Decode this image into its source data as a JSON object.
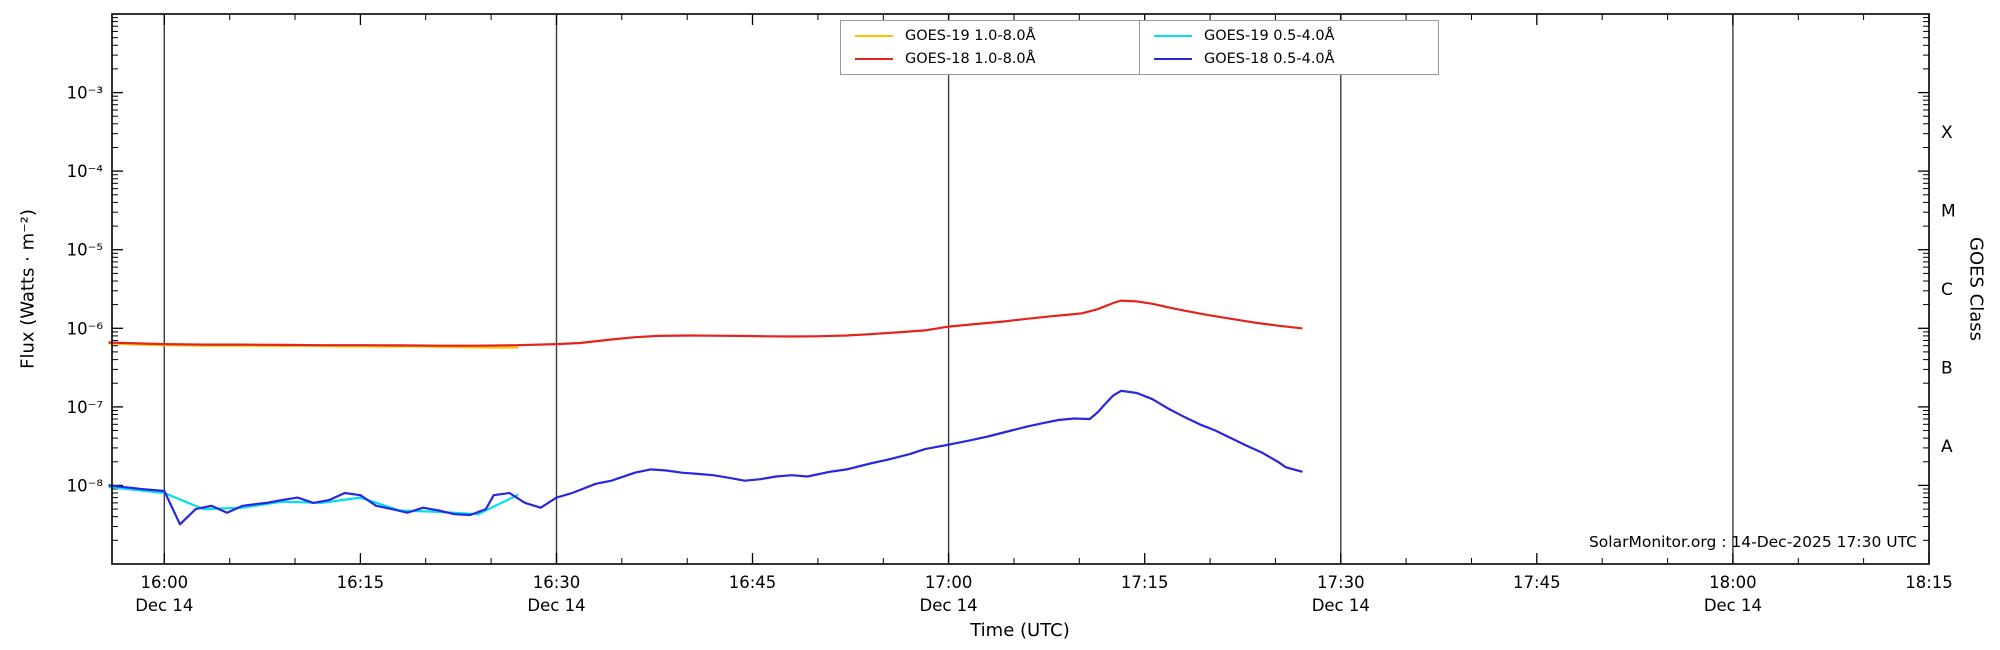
{
  "page": {
    "background": "#ffffff"
  },
  "footer": {
    "credit": "SolarMonitor.org : 14-Dec-2025 17:30 UTC"
  },
  "chart_data": {
    "type": "line",
    "title": "",
    "xlabel": "Time (UTC)",
    "ylabel": "Flux (Watts · m⁻²)",
    "ylabel_right": "GOES Class",
    "x_unit": "decimal_hours_utc",
    "xlim": [
      15.9333,
      18.25
    ],
    "ylim_log10": [
      -9,
      -2
    ],
    "grid": "vertical-only",
    "legend_position": "top-center",
    "gridlines_x": [
      16.0,
      16.5,
      17.0,
      17.5,
      18.0
    ],
    "x_minor_step_minutes": 5,
    "x_ticks": [
      {
        "t": 16.0,
        "label": "16:00",
        "date": "Dec 14"
      },
      {
        "t": 16.25,
        "label": "16:15"
      },
      {
        "t": 16.5,
        "label": "16:30",
        "date": "Dec 14"
      },
      {
        "t": 16.75,
        "label": "16:45"
      },
      {
        "t": 17.0,
        "label": "17:00",
        "date": "Dec 14"
      },
      {
        "t": 17.25,
        "label": "17:15"
      },
      {
        "t": 17.5,
        "label": "17:30",
        "date": "Dec 14"
      },
      {
        "t": 17.75,
        "label": "17:45"
      },
      {
        "t": 18.0,
        "label": "18:00",
        "date": "Dec 14"
      },
      {
        "t": 18.25,
        "label": "18:15"
      }
    ],
    "y_ticks": [
      {
        "exp": -3,
        "label": "10⁻³"
      },
      {
        "exp": -4,
        "label": "10⁻⁴"
      },
      {
        "exp": -5,
        "label": "10⁻⁵"
      },
      {
        "exp": -6,
        "label": "10⁻⁶"
      },
      {
        "exp": -7,
        "label": "10⁻⁷"
      },
      {
        "exp": -8,
        "label": "10⁻⁸"
      }
    ],
    "goes_classes": [
      {
        "label": "X",
        "log10_center": -3.5
      },
      {
        "label": "M",
        "log10_center": -4.5
      },
      {
        "label": "C",
        "log10_center": -5.5
      },
      {
        "label": "B",
        "log10_center": -6.5
      },
      {
        "label": "A",
        "log10_center": -7.5
      }
    ],
    "legend": [
      {
        "label": "GOES-19 1.0-8.0Å",
        "color": "#ffc400"
      },
      {
        "label": "GOES-18 1.0-8.0Å",
        "color": "#e3231c"
      },
      {
        "label": "GOES-19 0.5-4.0Å",
        "color": "#00e0e8"
      },
      {
        "label": "GOES-18 0.5-4.0Å",
        "color": "#2727de"
      }
    ],
    "series": [
      {
        "id": "goes19-long",
        "name": "GOES-19 1.0-8.0Å",
        "color": "#ffc400",
        "points": [
          [
            15.93,
            6.4e-07
          ],
          [
            15.97,
            6.2e-07
          ],
          [
            16.0,
            6.1e-07
          ],
          [
            16.05,
            6e-07
          ],
          [
            16.1,
            6e-07
          ],
          [
            16.15,
            5.95e-07
          ],
          [
            16.18,
            6e-07
          ],
          [
            16.22,
            5.9e-07
          ],
          [
            16.25,
            5.9e-07
          ],
          [
            16.28,
            5.85e-07
          ],
          [
            16.32,
            5.9e-07
          ],
          [
            16.35,
            5.8e-07
          ],
          [
            16.38,
            5.75e-07
          ],
          [
            16.42,
            5.7e-07
          ],
          [
            16.45,
            5.7e-07
          ]
        ]
      },
      {
        "id": "goes19-short",
        "name": "GOES-19 0.5-4.0Å",
        "color": "#00e0e8",
        "points": [
          [
            15.93,
            9.5e-09
          ],
          [
            16.0,
            8e-09
          ],
          [
            16.05,
            5e-09
          ],
          [
            16.1,
            5.2e-09
          ],
          [
            16.15,
            6.2e-09
          ],
          [
            16.2,
            6e-09
          ],
          [
            16.25,
            7e-09
          ],
          [
            16.3,
            4.8e-09
          ],
          [
            16.35,
            4.6e-09
          ],
          [
            16.4,
            4.3e-09
          ],
          [
            16.45,
            7.5e-09
          ]
        ]
      },
      {
        "id": "goes18-long",
        "name": "GOES-18 1.0-8.0Å",
        "color": "#e3231c",
        "points": [
          [
            15.93,
            6.6e-07
          ],
          [
            15.97,
            6.4e-07
          ],
          [
            16.0,
            6.3e-07
          ],
          [
            16.05,
            6.2e-07
          ],
          [
            16.1,
            6.2e-07
          ],
          [
            16.15,
            6.15e-07
          ],
          [
            16.2,
            6.1e-07
          ],
          [
            16.25,
            6.1e-07
          ],
          [
            16.3,
            6.05e-07
          ],
          [
            16.35,
            6e-07
          ],
          [
            16.4,
            6e-07
          ],
          [
            16.45,
            6.1e-07
          ],
          [
            16.5,
            6.3e-07
          ],
          [
            16.53,
            6.5e-07
          ],
          [
            16.57,
            7.2e-07
          ],
          [
            16.6,
            7.7e-07
          ],
          [
            16.63,
            8e-07
          ],
          [
            16.67,
            8.1e-07
          ],
          [
            16.7,
            8.05e-07
          ],
          [
            16.73,
            8e-07
          ],
          [
            16.77,
            7.9e-07
          ],
          [
            16.8,
            7.85e-07
          ],
          [
            16.83,
            7.9e-07
          ],
          [
            16.87,
            8.1e-07
          ],
          [
            16.9,
            8.4e-07
          ],
          [
            16.93,
            8.8e-07
          ],
          [
            16.97,
            9.4e-07
          ],
          [
            17.0,
            1.05e-06
          ],
          [
            17.03,
            1.12e-06
          ],
          [
            17.07,
            1.22e-06
          ],
          [
            17.1,
            1.32e-06
          ],
          [
            17.13,
            1.42e-06
          ],
          [
            17.15,
            1.48e-06
          ],
          [
            17.17,
            1.55e-06
          ],
          [
            17.19,
            1.75e-06
          ],
          [
            17.21,
            2.1e-06
          ],
          [
            17.22,
            2.25e-06
          ],
          [
            17.24,
            2.2e-06
          ],
          [
            17.26,
            2.05e-06
          ],
          [
            17.28,
            1.85e-06
          ],
          [
            17.3,
            1.68e-06
          ],
          [
            17.33,
            1.48e-06
          ],
          [
            17.36,
            1.32e-06
          ],
          [
            17.39,
            1.18e-06
          ],
          [
            17.42,
            1.08e-06
          ],
          [
            17.45,
            1e-06
          ]
        ]
      },
      {
        "id": "goes18-short",
        "name": "GOES-18 0.5-4.0Å",
        "color": "#2727de",
        "points": [
          [
            15.93,
            1e-08
          ],
          [
            15.95,
            9.5e-09
          ],
          [
            15.97,
            9e-09
          ],
          [
            16.0,
            8.5e-09
          ],
          [
            16.02,
            3.2e-09
          ],
          [
            16.04,
            5e-09
          ],
          [
            16.06,
            5.5e-09
          ],
          [
            16.08,
            4.5e-09
          ],
          [
            16.1,
            5.5e-09
          ],
          [
            16.13,
            6e-09
          ],
          [
            16.15,
            6.5e-09
          ],
          [
            16.17,
            7e-09
          ],
          [
            16.19,
            6e-09
          ],
          [
            16.21,
            6.5e-09
          ],
          [
            16.23,
            8e-09
          ],
          [
            16.25,
            7.5e-09
          ],
          [
            16.27,
            5.5e-09
          ],
          [
            16.29,
            5e-09
          ],
          [
            16.31,
            4.5e-09
          ],
          [
            16.33,
            5.2e-09
          ],
          [
            16.35,
            4.8e-09
          ],
          [
            16.37,
            4.3e-09
          ],
          [
            16.39,
            4.2e-09
          ],
          [
            16.41,
            5e-09
          ],
          [
            16.42,
            7.5e-09
          ],
          [
            16.44,
            8e-09
          ],
          [
            16.46,
            6e-09
          ],
          [
            16.48,
            5.2e-09
          ],
          [
            16.5,
            7e-09
          ],
          [
            16.52,
            8e-09
          ],
          [
            16.55,
            1.05e-08
          ],
          [
            16.57,
            1.15e-08
          ],
          [
            16.6,
            1.45e-08
          ],
          [
            16.62,
            1.6e-08
          ],
          [
            16.64,
            1.55e-08
          ],
          [
            16.66,
            1.45e-08
          ],
          [
            16.68,
            1.4e-08
          ],
          [
            16.7,
            1.35e-08
          ],
          [
            16.72,
            1.25e-08
          ],
          [
            16.74,
            1.15e-08
          ],
          [
            16.76,
            1.2e-08
          ],
          [
            16.78,
            1.3e-08
          ],
          [
            16.8,
            1.35e-08
          ],
          [
            16.82,
            1.3e-08
          ],
          [
            16.85,
            1.5e-08
          ],
          [
            16.87,
            1.6e-08
          ],
          [
            16.9,
            1.9e-08
          ],
          [
            16.92,
            2.1e-08
          ],
          [
            16.95,
            2.5e-08
          ],
          [
            16.97,
            2.9e-08
          ],
          [
            17.0,
            3.3e-08
          ],
          [
            17.03,
            3.8e-08
          ],
          [
            17.05,
            4.2e-08
          ],
          [
            17.08,
            5e-08
          ],
          [
            17.1,
            5.6e-08
          ],
          [
            17.12,
            6.2e-08
          ],
          [
            17.14,
            6.8e-08
          ],
          [
            17.16,
            7.1e-08
          ],
          [
            17.18,
            7e-08
          ],
          [
            17.19,
            8.5e-08
          ],
          [
            17.2,
            1.1e-07
          ],
          [
            17.21,
            1.4e-07
          ],
          [
            17.22,
            1.6e-07
          ],
          [
            17.24,
            1.5e-07
          ],
          [
            17.26,
            1.25e-07
          ],
          [
            17.28,
            9.5e-08
          ],
          [
            17.3,
            7.5e-08
          ],
          [
            17.32,
            6e-08
          ],
          [
            17.34,
            5e-08
          ],
          [
            17.36,
            4e-08
          ],
          [
            17.38,
            3.2e-08
          ],
          [
            17.4,
            2.6e-08
          ],
          [
            17.42,
            2e-08
          ],
          [
            17.43,
            1.7e-08
          ],
          [
            17.45,
            1.5e-08
          ]
        ]
      }
    ],
    "colors": {
      "gridline": "#3b3b3b",
      "axis": "#000000",
      "background": "#ffffff"
    }
  }
}
